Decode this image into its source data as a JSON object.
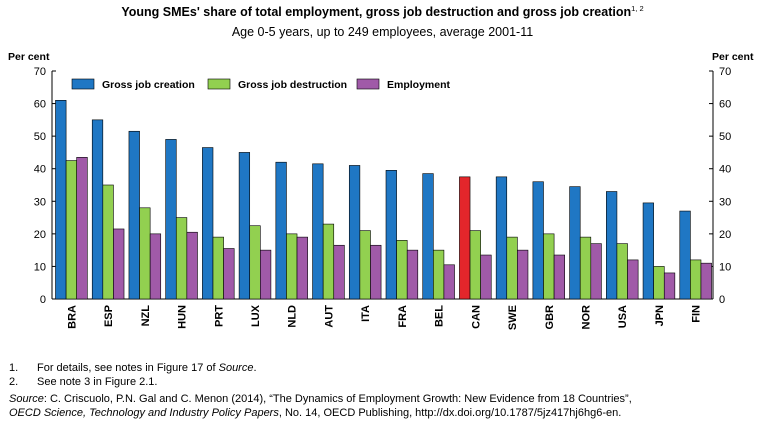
{
  "title": "Young SMEs' share of total employment, gross job destruction and gross job creation",
  "title_sup": "1, 2",
  "subtitle": "Age 0-5 years, up to 249 employees, average 2001-11",
  "chart_data": {
    "type": "bar",
    "ylabel_left": "Per cent",
    "ylabel_right": "Per cent",
    "ylim": [
      0,
      70
    ],
    "yticks": [
      0,
      10,
      20,
      30,
      40,
      50,
      60,
      70
    ],
    "legend_placement": "top-left",
    "grid": false,
    "categories": [
      "BRA",
      "ESP",
      "NZL",
      "HUN",
      "PRT",
      "LUX",
      "NLD",
      "AUT",
      "ITA",
      "FRA",
      "BEL",
      "CAN",
      "SWE",
      "GBR",
      "NOR",
      "USA",
      "JPN",
      "FIN"
    ],
    "highlight_category": "CAN",
    "series": [
      {
        "name": "Gross job creation",
        "color": "#1f77c4",
        "values": [
          61,
          55,
          51.5,
          49,
          46.5,
          45,
          42,
          41.5,
          41,
          39.5,
          38.5,
          37.5,
          37.5,
          36,
          34.5,
          33,
          29.5,
          27
        ]
      },
      {
        "name": "Gross job destruction",
        "color": "#92d050",
        "values": [
          42.5,
          35,
          28,
          25,
          19,
          22.5,
          20,
          23,
          21,
          18,
          15,
          21,
          19,
          20,
          19,
          17,
          10,
          12
        ]
      },
      {
        "name": "Employment",
        "color": "#a05aa8",
        "values": [
          43.5,
          21.5,
          20,
          20.5,
          15.5,
          15,
          19,
          16.5,
          16.5,
          15,
          10.5,
          13.5,
          15,
          13.5,
          17,
          12,
          8,
          11
        ]
      }
    ],
    "highlight_color": "#e3262b",
    "axis_color": "#000000"
  },
  "notes": [
    {
      "num": "1.",
      "text_before": "For details, see notes in Figure 17 of ",
      "italic": "Source",
      "text_after": "."
    },
    {
      "num": "2.",
      "text_before": "See note 3 in Figure 2.1.",
      "italic": "",
      "text_after": ""
    }
  ],
  "source": {
    "label": "Source",
    "line1": ": C. Criscuolo, P.N. Gal and C. Menon (2014), “The Dynamics of Employment Growth: New Evidence from 18 Countries”,",
    "italic2": "OECD Science, Technology and Industry Policy Papers",
    "line2": ", No. 14, OECD Publishing, http://dx.doi.org/10.1787/5jz417hj6hg6-en."
  }
}
